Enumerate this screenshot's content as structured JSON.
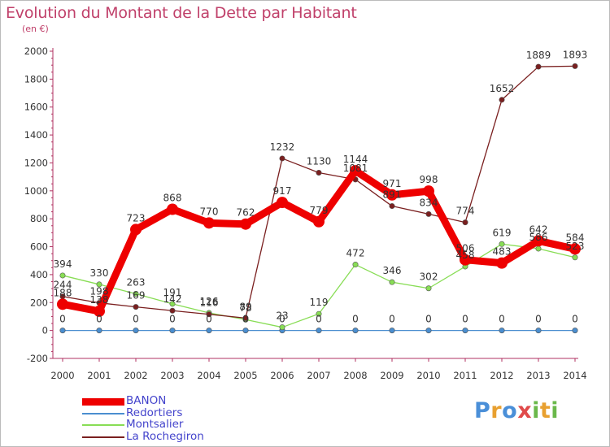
{
  "title": "Evolution du Montant de la Dette par Habitant",
  "subtitle": "(en €)",
  "logo_text": "Proxiti",
  "chart_data": {
    "type": "line",
    "x": [
      2000,
      2001,
      2002,
      2003,
      2004,
      2005,
      2006,
      2007,
      2008,
      2009,
      2010,
      2011,
      2012,
      2013,
      2014
    ],
    "x_tick_labels": [
      "2000",
      "2001",
      "2002",
      "2003",
      "2004",
      "2005",
      "2006",
      "2007",
      "2008",
      "2009",
      "2010",
      "2011",
      "2012",
      "2013",
      "2014"
    ],
    "y_ticks": [
      -200,
      0,
      200,
      400,
      600,
      800,
      1000,
      1200,
      1400,
      1600,
      1800,
      2000
    ],
    "ylim": [
      -200,
      2000
    ],
    "grid": false,
    "legend_position": "bottom-left",
    "series": [
      {
        "name": "BANON",
        "color": "#ee0000",
        "values": [
          188,
          138,
          723,
          868,
          770,
          762,
          917,
          779,
          1144,
          971,
          998,
          506,
          483,
          642,
          584
        ],
        "labels": [
          "188",
          "138",
          "723",
          "868",
          "770",
          "762",
          "917",
          "779",
          "1144",
          "971",
          "998",
          "506",
          "483",
          "642",
          "584"
        ]
      },
      {
        "name": "Redortiers",
        "color": "#4a8ed0",
        "values": [
          0,
          0,
          0,
          0,
          0,
          0,
          0,
          0,
          0,
          0,
          0,
          0,
          0,
          0,
          0
        ],
        "labels": [
          "0",
          "0",
          "0",
          "0",
          "0",
          "0",
          "0",
          "0",
          "0",
          "0",
          "0",
          "0",
          "0",
          "0",
          "0"
        ]
      },
      {
        "name": "Montsalier",
        "color": "#88dd55",
        "values": [
          394,
          330,
          263,
          191,
          126,
          78,
          23,
          119,
          472,
          346,
          302,
          458,
          619,
          586,
          523
        ],
        "labels": [
          "394",
          "330",
          "263",
          "191",
          "126",
          "78",
          "23",
          "119",
          "472",
          "346",
          "302",
          "458",
          "619",
          "586",
          "523"
        ]
      },
      {
        "name": "La Rochegiron",
        "color": "#7a1f1f",
        "values": [
          244,
          198,
          169,
          142,
          116,
          89,
          1232,
          1130,
          1081,
          891,
          834,
          774,
          1652,
          1889,
          1893
        ],
        "labels": [
          "244",
          "198",
          "169",
          "142",
          "116",
          "89",
          "1232",
          "1130",
          "1081",
          "891",
          "834",
          "774",
          "1652",
          "1889",
          "1893"
        ]
      }
    ]
  }
}
